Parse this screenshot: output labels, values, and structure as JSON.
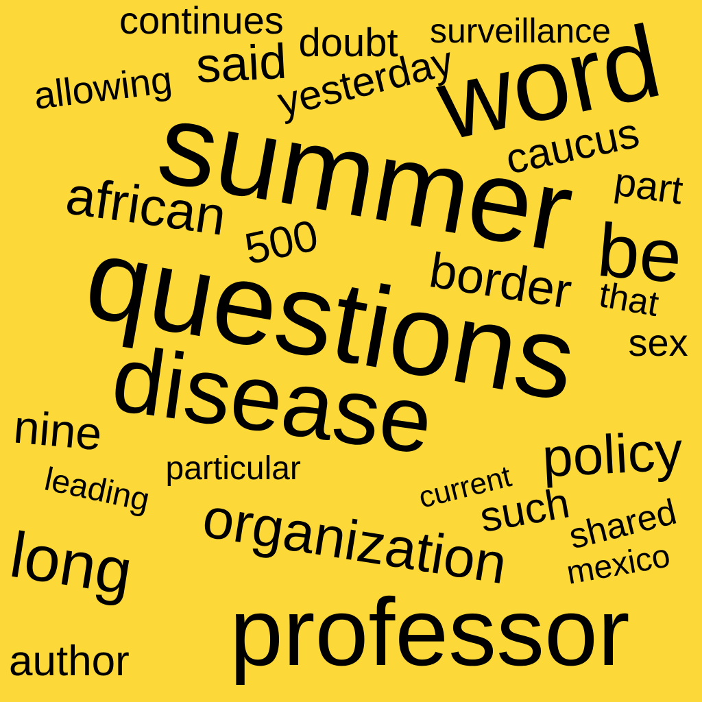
{
  "colors": {
    "background": "#FCD939",
    "text": "#000000"
  },
  "words": [
    {
      "id": "word-continues",
      "text": "continues"
    },
    {
      "id": "word-doubt",
      "text": "doubt"
    },
    {
      "id": "word-surveillance",
      "text": "surveillance"
    },
    {
      "id": "word-said",
      "text": "said"
    },
    {
      "id": "word-allowing",
      "text": "allowing"
    },
    {
      "id": "word-yesterday",
      "text": "yesterday"
    },
    {
      "id": "word-word",
      "text": "word"
    },
    {
      "id": "word-summer",
      "text": "summer"
    },
    {
      "id": "word-caucus",
      "text": "caucus"
    },
    {
      "id": "word-part",
      "text": "part"
    },
    {
      "id": "word-african",
      "text": "african"
    },
    {
      "id": "word-500",
      "text": "500"
    },
    {
      "id": "word-be",
      "text": "be"
    },
    {
      "id": "word-questions",
      "text": "questions"
    },
    {
      "id": "word-border",
      "text": "border"
    },
    {
      "id": "word-that",
      "text": "that"
    },
    {
      "id": "word-sex",
      "text": "sex"
    },
    {
      "id": "word-disease",
      "text": "disease"
    },
    {
      "id": "word-nine",
      "text": "nine"
    },
    {
      "id": "word-policy",
      "text": "policy"
    },
    {
      "id": "word-particular",
      "text": "particular"
    },
    {
      "id": "word-leading",
      "text": "leading"
    },
    {
      "id": "word-current",
      "text": "current"
    },
    {
      "id": "word-organization",
      "text": "organization"
    },
    {
      "id": "word-such",
      "text": "such"
    },
    {
      "id": "word-shared",
      "text": "shared"
    },
    {
      "id": "word-long",
      "text": "long"
    },
    {
      "id": "word-mexico",
      "text": "mexico"
    },
    {
      "id": "word-professor",
      "text": "professor"
    },
    {
      "id": "word-author",
      "text": "author"
    }
  ]
}
